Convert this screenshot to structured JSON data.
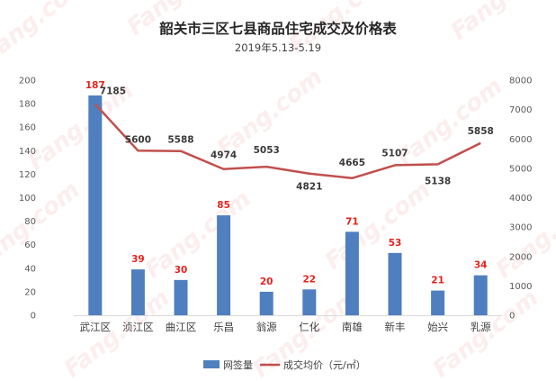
{
  "chart_data": {
    "type": "bar",
    "title": "韶关市三区七县商品住宅成交及价格表",
    "subtitle": "2019年5.13-5.19",
    "categories": [
      "武江区",
      "浈江区",
      "曲江区",
      "乐昌",
      "翁源",
      "仁化",
      "南雄",
      "新丰",
      "始兴",
      "乳源"
    ],
    "series": [
      {
        "name": "网签量",
        "type": "bar",
        "axis": "left",
        "color": "#4f7fbe",
        "values": [
          187,
          39,
          30,
          85,
          20,
          22,
          71,
          53,
          21,
          34
        ]
      },
      {
        "name": "成交均价（元/㎡）",
        "type": "line",
        "axis": "right",
        "color": "#c0504d",
        "values": [
          7185,
          5600,
          5588,
          4974,
          5053,
          4821,
          4665,
          5107,
          5138,
          5858
        ]
      }
    ],
    "y_left": {
      "min": 0,
      "max": 200,
      "step": 20
    },
    "y_right": {
      "min": 0,
      "max": 8000,
      "step": 1000
    },
    "grid": false,
    "legend_position": "bottom",
    "watermark": "Fang.com 房天下"
  }
}
